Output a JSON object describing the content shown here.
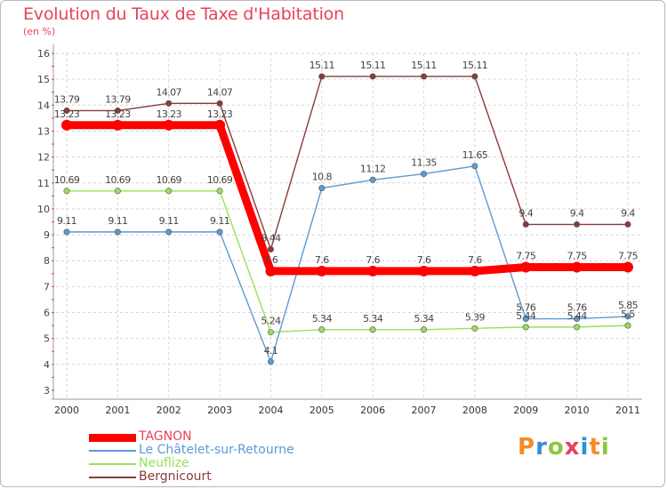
{
  "title": "Evolution du Taux de Taxe d'Habitation",
  "unit_label": "(en %)",
  "brand": {
    "letters": [
      "P",
      "r",
      "o",
      "x",
      "i",
      "t",
      "i"
    ],
    "colors": [
      "#f28c28",
      "#2f8fd8",
      "#8cc63f",
      "#e8425a",
      "#2f8fd8",
      "#f28c28",
      "#8cc63f"
    ]
  },
  "chart_data": {
    "type": "line",
    "title": "Evolution du Taux de Taxe d'Habitation",
    "ylabel": "(en %)",
    "xlabel": "",
    "x": [
      "2000",
      "2001",
      "2002",
      "2003",
      "2004",
      "2005",
      "2006",
      "2007",
      "2008",
      "2009",
      "2010",
      "2011"
    ],
    "ylim": [
      3,
      16
    ],
    "yticks": [
      "3",
      "4",
      "5",
      "6",
      "7",
      "8",
      "9",
      "10",
      "11",
      "12",
      "13",
      "14",
      "15",
      "16"
    ],
    "grid": true,
    "legend_position": "bottom-left",
    "series": [
      {
        "name": "TAGNON",
        "color": "#ff0000",
        "values": [
          13.23,
          13.23,
          13.23,
          13.23,
          7.6,
          7.6,
          7.6,
          7.6,
          7.6,
          7.75,
          7.75,
          7.75
        ],
        "labels": [
          "13.23",
          "13.23",
          "13.23",
          "13.23",
          "7.6",
          "7.6",
          "7.6",
          "7.6",
          "7.6",
          "7.75",
          "7.75",
          "7.75"
        ]
      },
      {
        "name": "Le Châtelet-sur-Retourne",
        "color": "#5b9bd5",
        "values": [
          9.11,
          9.11,
          9.11,
          9.11,
          4.1,
          10.8,
          11.12,
          11.35,
          11.65,
          5.76,
          5.76,
          5.85
        ],
        "labels": [
          "9.11",
          "9.11",
          "9.11",
          "9.11",
          "4.1",
          "10.8",
          "11.12",
          "11.35",
          "11.65",
          "5.76",
          "5.76",
          "5.85"
        ]
      },
      {
        "name": "Neuflize",
        "color": "#99e05a",
        "values": [
          10.69,
          10.69,
          10.69,
          10.69,
          5.24,
          5.34,
          5.34,
          5.34,
          5.39,
          5.44,
          5.44,
          5.5
        ],
        "labels": [
          "10.69",
          "10.69",
          "10.69",
          "10.69",
          "5.24",
          "5.34",
          "5.34",
          "5.34",
          "5.39",
          "5.44",
          "5.44",
          "5.5"
        ]
      },
      {
        "name": "Bergnicourt",
        "color": "#8b3a3a",
        "values": [
          13.79,
          13.79,
          14.07,
          14.07,
          8.44,
          15.11,
          15.11,
          15.11,
          15.11,
          9.4,
          9.4,
          9.4
        ],
        "labels": [
          "13.79",
          "13.79",
          "14.07",
          "14.07",
          "8.44",
          "15.11",
          "15.11",
          "15.11",
          "15.11",
          "9.4",
          "9.4",
          "9.4"
        ]
      }
    ]
  }
}
